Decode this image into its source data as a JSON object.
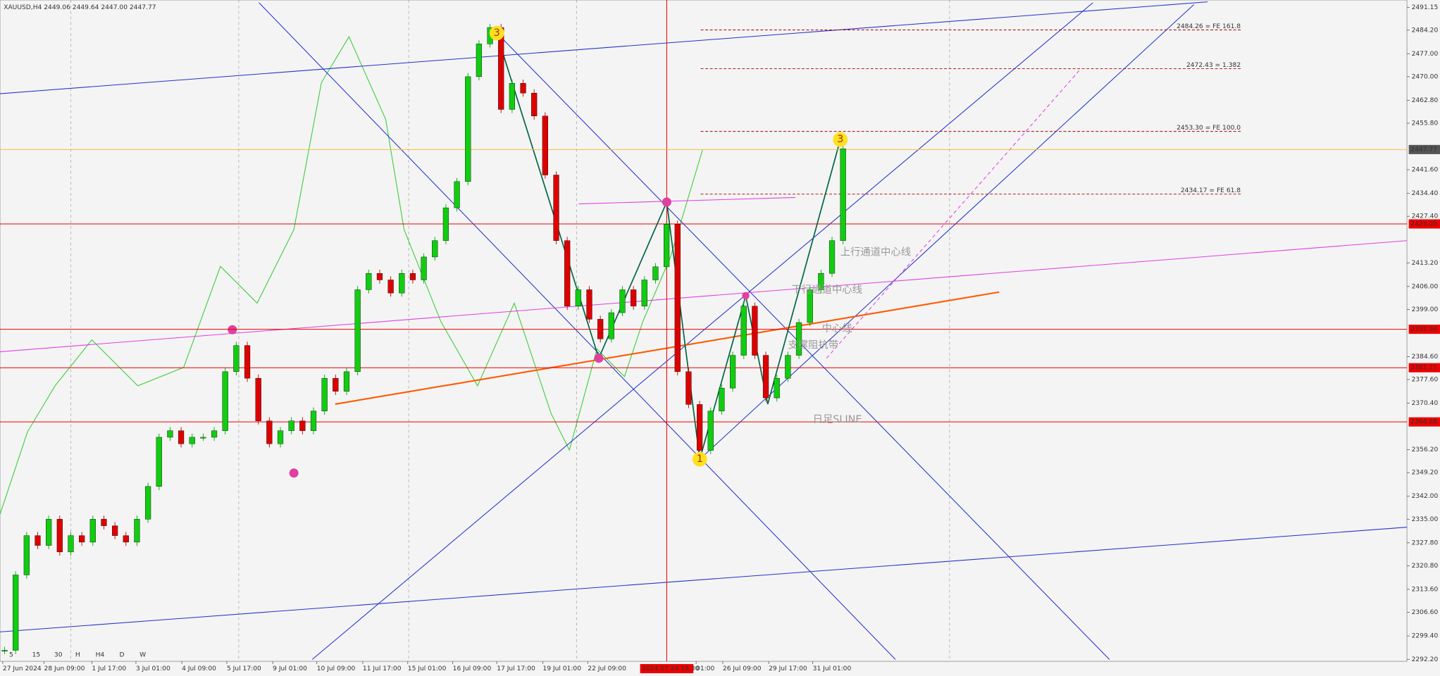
{
  "chart_data": {
    "type": "candlestick",
    "header": "XAUUSD,H4  2449.06 2449.64 2447.00 2447.77",
    "ylim": [
      2291.65,
      2493.39
    ],
    "yticks": [
      {
        "value": 2491.15,
        "label": "2491.15"
      },
      {
        "value": 2484.2,
        "label": "2484.20"
      },
      {
        "value": 2477,
        "label": "2477.00"
      },
      {
        "value": 2470,
        "label": "2470.00"
      },
      {
        "value": 2462.8,
        "label": "2462.80"
      },
      {
        "value": 2455.8,
        "label": "2455.80"
      },
      {
        "value": 2441.6,
        "label": "2441.60"
      },
      {
        "value": 2434.4,
        "label": "2434.40"
      },
      {
        "value": 2427.4,
        "label": "2427.40"
      },
      {
        "value": 2413.2,
        "label": "2413.20"
      },
      {
        "value": 2406,
        "label": "2406.00"
      },
      {
        "value": 2399,
        "label": "2399.00"
      },
      {
        "value": 2384.6,
        "label": "2384.60"
      },
      {
        "value": 2377.6,
        "label": "2377.60"
      },
      {
        "value": 2370.4,
        "label": "2370.40"
      },
      {
        "value": 2356.2,
        "label": "2356.20"
      },
      {
        "value": 2349.2,
        "label": "2349.20"
      },
      {
        "value": 2342,
        "label": "2342.00"
      },
      {
        "value": 2335,
        "label": "2335.00"
      },
      {
        "value": 2327.8,
        "label": "2327.80"
      },
      {
        "value": 2320.8,
        "label": "2320.80"
      },
      {
        "value": 2313.6,
        "label": "2313.60"
      },
      {
        "value": 2306.6,
        "label": "2306.60"
      },
      {
        "value": 2299.4,
        "label": "2299.40"
      },
      {
        "value": 2292.2,
        "label": "2292.20"
      }
    ],
    "x_labels": [
      "27 Jun 2024",
      "28 Jun 09:00",
      "1 Jul 17:00",
      "3 Jul 01:00",
      "4 Jul 09:00",
      "5 Jul 17:00",
      "9 Jul 01:00",
      "10 Jul 09:00",
      "11 Jul 17:00",
      "15 Jul 01:00",
      "16 Jul 09:00",
      "17 Jul 17:00",
      "19 Jul 01:00",
      "22 Jul 09:00",
      "01:00",
      "26 Jul 09:00",
      "29 Jul 17:00",
      "31 Jul 01:00"
    ],
    "cursor_time": "2024.07.24 18:30",
    "timeframes": [
      "5",
      "15",
      "30",
      "H",
      "H4",
      "D",
      "W"
    ],
    "current_price": 2447.77,
    "levels": [
      2425.08,
      2392.94,
      2381.21,
      2364.68
    ],
    "fibo": [
      {
        "value": 2484.26,
        "label": "2484.26 = FE 161.8"
      },
      {
        "value": 2472.43,
        "label": "2472.43 = 1.382"
      },
      {
        "value": 2453.3,
        "label": "2453.30 = FE 100.0"
      },
      {
        "value": 2434.17,
        "label": "2434.17 = FE 61.8"
      }
    ],
    "annotations": [
      "上行通道中心线",
      "下行通道中心线",
      "中心线",
      "支撑阻抗带",
      "日足SLINE"
    ],
    "wave_labels": [
      "3",
      "3",
      "1"
    ],
    "closes": [
      2295,
      2318,
      2330,
      2327,
      2335,
      2325,
      2330,
      2328,
      2335,
      2333,
      2330,
      2328,
      2335,
      2345,
      2360,
      2362,
      2358,
      2360,
      2360,
      2362,
      2380,
      2388,
      2378,
      2365,
      2358,
      2362,
      2365,
      2362,
      2368,
      2378,
      2374,
      2380,
      2405,
      2410,
      2408,
      2404,
      2410,
      2408,
      2415,
      2420,
      2430,
      2438,
      2470,
      2480,
      2485,
      2460,
      2468,
      2465,
      2458,
      2440,
      2420,
      2400,
      2405,
      2396,
      2390,
      2398,
      2405,
      2400,
      2408,
      2412,
      2425,
      2380,
      2370,
      2356,
      2368,
      2375,
      2385,
      2400,
      2385,
      2372,
      2378,
      2385,
      2395,
      2405,
      2410,
      2420,
      2448
    ]
  }
}
